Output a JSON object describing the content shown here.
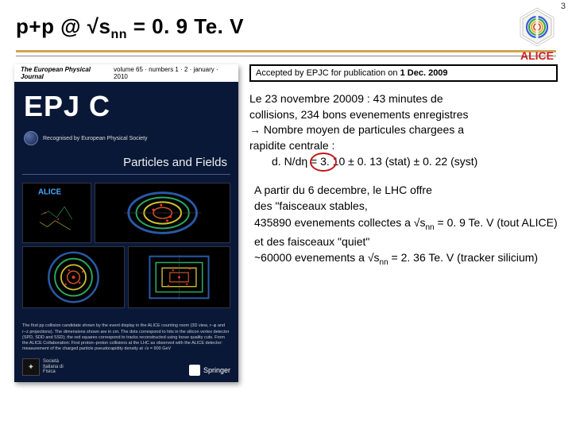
{
  "page_number": "3",
  "title_html": "p+p @ √s<sub>nn</sub> = 0. 9 Te. V",
  "logo": {
    "text": "ALICE",
    "text_color": "#c82020",
    "ring_colors": [
      "#3a5bd8",
      "#2aa54a",
      "#e0b020",
      "#d84028"
    ]
  },
  "journal_cover": {
    "top_left": "The European Physical Journal",
    "top_right": "volume 65 · numbers 1 · 2 · january · 2010",
    "big_title": "EPJ C",
    "badge_text": "Recognised by European Physical Society",
    "subtitle": "Particles and Fields",
    "footer_small": "The first pp collision candidate shown by the event display in the ALICE counting room (3D view, r−φ and r−z projections). The dimensions shown are in cm. The dots correspond to hits in the silicon vertex detector (SPD, SDD and SSD); the red squares correspond to tracks reconstructed using loose quality cuts. From the ALICE Collaboration: First proton–proton collisions at the LHC as observed with the ALICE detector: measurement of the charged particle pseudorapidity density at √s = 900 GeV",
    "publisher_left": "Società Italiana di Fisica",
    "publisher_right": "Springer",
    "bg_color": "#0a1838",
    "event_colors": {
      "ring1": "#2a5aa8",
      "ring2": "#2aa860",
      "ring3": "#d0c030",
      "center": "#ff3030"
    }
  },
  "accept_box": {
    "prefix": "Accepted by EPJC for publication on ",
    "date": "1 Dec. 2009"
  },
  "para1": {
    "line1": "Le 23 novembre 20009 : 43 minutes de",
    "line2": "collisions, 234 bons evenements enregistres",
    "line3": "→ Nombre moyen de particules chargees a",
    "line4": "rapidite centrale :",
    "formula": "d. N/dη = 3. 10 ± 0. 13 (stat) ± 0. 22 (syst)"
  },
  "para2": {
    "l1": "A partir du 6 decembre, le LHC offre",
    "l2": "des \"faisceaux stables,",
    "l3_a": "435890 evenements collectes a √s",
    "l3_b": " = 0. 9 Te. V (tout ALICE)",
    "l4": "et des faisceaux \"quiet\"",
    "l5_a": "~60000 evenements a √s",
    "l5_b": " = 2. 36 Te. V (tracker silicium)"
  },
  "colors": {
    "divider": "#e8a028",
    "circle": "#c01818"
  }
}
